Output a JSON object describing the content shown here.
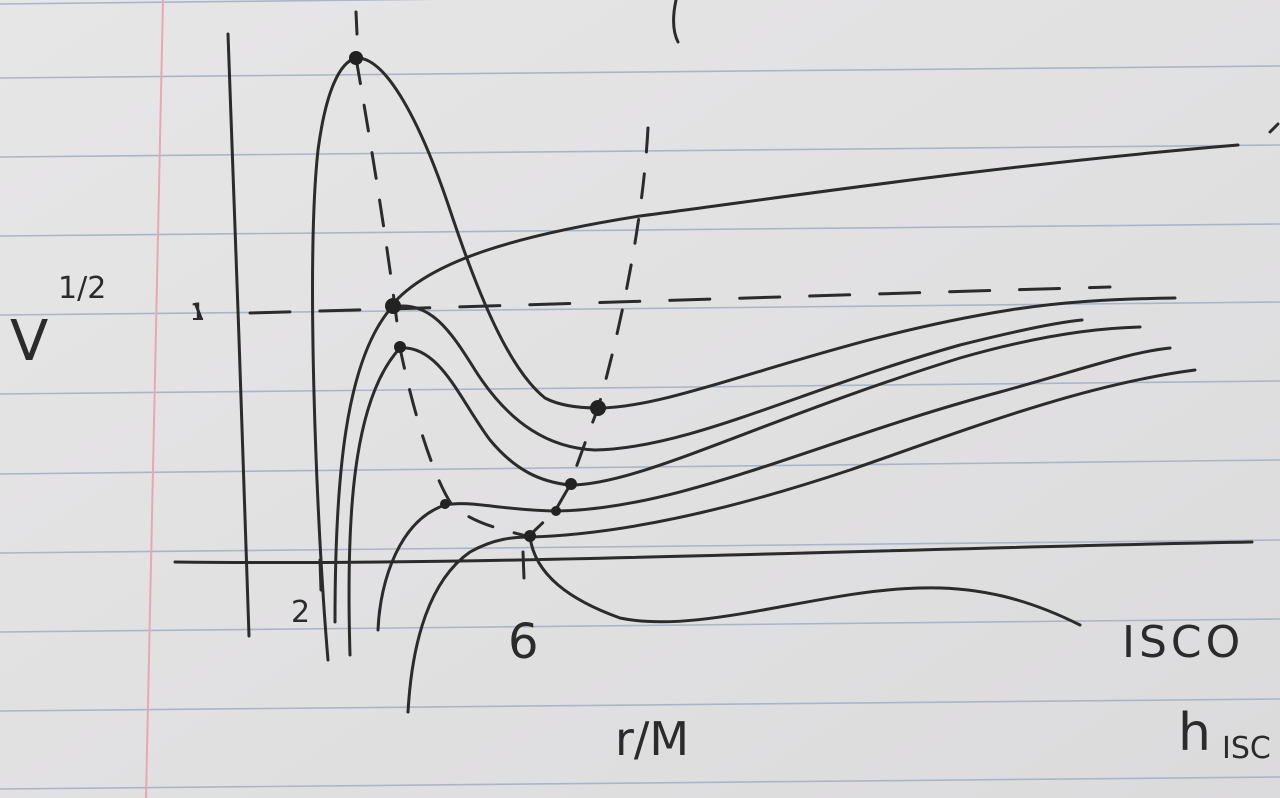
{
  "photo": {
    "subject": "hand-drawn sketch on ruled notebook paper",
    "colors": {
      "paper": "#e4e3e4",
      "rule_line": "#a9b6c9",
      "margin_line": "#e8a7b4",
      "ink": "#2b2b2b"
    }
  },
  "labels": {
    "y_axis": "V",
    "y_exponent": "1/2",
    "y_tick_one": "1",
    "x_tick_two": "2",
    "x_tick_six": "6",
    "x_axis": "r/M",
    "isco": "ISCO",
    "h_isco_main": "h",
    "h_isco_sub": "ISC"
  }
}
